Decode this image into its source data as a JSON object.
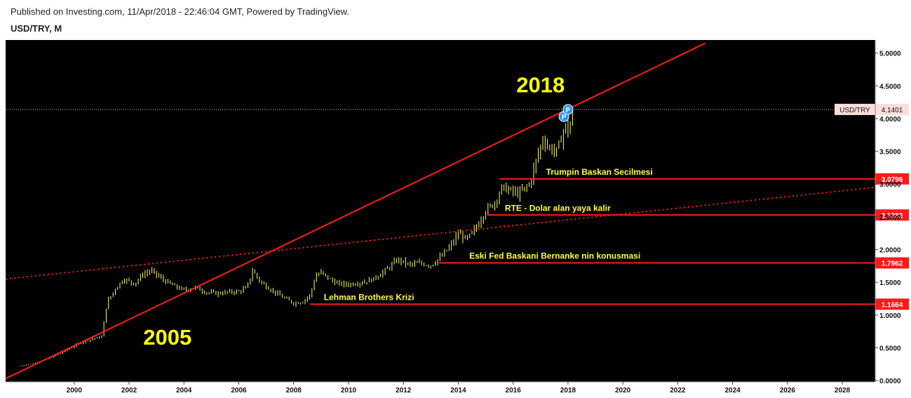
{
  "header": {
    "published": "Published on Investing.com, 11/Apr/2018 - 22:46:04 GMT, Powered by TradingView.",
    "symbol": "USD/TRY, M"
  },
  "colors": {
    "background": "#000000",
    "candles": "#ffff66",
    "trendline": "#ff1a1a",
    "level_line": "#ff1a1a",
    "label_text": "#ffff33",
    "price_tag_bg": "#ffdddd"
  },
  "chart_data": {
    "type": "line",
    "title": "USD/TRY, M",
    "xlim": [
      1997.5,
      2029.2
    ],
    "ylim": [
      -0.02,
      5.2
    ],
    "x_ticks": [
      "2000",
      "2002",
      "2004",
      "2006",
      "2008",
      "2010",
      "2012",
      "2014",
      "2016",
      "2018",
      "2020",
      "2022",
      "2024",
      "2026",
      "2028"
    ],
    "y_ticks": [
      "0.0000",
      "0.5000",
      "1.0000",
      "1.5000",
      "2.0000",
      "2.5000",
      "3.0000",
      "3.5000",
      "4.0000",
      "4.5000",
      "5.0000"
    ],
    "series": [
      {
        "name": "USD/TRY",
        "x": [
          1998.0,
          1998.5,
          1999.0,
          1999.5,
          2000.0,
          2000.5,
          2001.0,
          2001.2,
          2001.5,
          2001.8,
          2002.2,
          2002.5,
          2002.8,
          2003.2,
          2003.6,
          2004.0,
          2004.4,
          2004.8,
          2005.2,
          2005.6,
          2006.0,
          2006.3,
          2006.5,
          2006.8,
          2007.2,
          2007.6,
          2008.0,
          2008.3,
          2008.6,
          2008.8,
          2009.0,
          2009.3,
          2009.6,
          2010.0,
          2010.5,
          2010.9,
          2011.4,
          2011.8,
          2012.2,
          2012.6,
          2013.0,
          2013.4,
          2013.8,
          2014.0,
          2014.3,
          2014.6,
          2015.0,
          2015.3,
          2015.6,
          2015.9,
          2016.2,
          2016.6,
          2016.9,
          2017.1,
          2017.3,
          2017.6,
          2017.9,
          2018.0,
          2018.2
        ],
        "y": [
          0.22,
          0.26,
          0.33,
          0.42,
          0.53,
          0.62,
          0.67,
          1.2,
          1.4,
          1.55,
          1.48,
          1.62,
          1.68,
          1.55,
          1.45,
          1.38,
          1.42,
          1.35,
          1.33,
          1.35,
          1.36,
          1.42,
          1.68,
          1.5,
          1.38,
          1.27,
          1.18,
          1.2,
          1.3,
          1.6,
          1.65,
          1.55,
          1.48,
          1.47,
          1.5,
          1.55,
          1.7,
          1.85,
          1.77,
          1.79,
          1.76,
          1.9,
          2.1,
          2.25,
          2.15,
          2.3,
          2.6,
          2.7,
          2.95,
          2.9,
          2.85,
          3.0,
          3.45,
          3.7,
          3.55,
          3.5,
          3.9,
          3.8,
          4.1
        ]
      }
    ],
    "current": {
      "label": "USD/TRY",
      "value": "4.1401",
      "price": 4.1401
    },
    "levels": [
      {
        "price": 3.0796,
        "label": "3.0796",
        "x_start": 2015.5,
        "annotation": "Trumpin Baskan Secilmesi",
        "ann_x": 2017.2
      },
      {
        "price": 2.5282,
        "label": "2.5282",
        "x_start": 2015.1,
        "annotation": "RTE - Dolar alan yaya kalir",
        "ann_x": 2015.7
      },
      {
        "price": 1.7962,
        "label": "1.7962",
        "x_start": 2013.3,
        "annotation": "Eski Fed Baskani Bernanke nin konusmasi",
        "ann_x": 2014.4
      },
      {
        "price": 1.1664,
        "label": "1.1664",
        "x_start": 2008.6,
        "annotation": "Lehman Brothers Krizi",
        "ann_x": 2009.1
      }
    ],
    "trendlines": [
      {
        "style": "solid",
        "x1": 1997.5,
        "y1": 0.03,
        "x2": 2023.0,
        "y2": 5.15
      },
      {
        "style": "dotted",
        "x1": 1997.5,
        "y1": 1.55,
        "x2": 2029.2,
        "y2": 2.95
      }
    ],
    "big_labels": [
      {
        "text": "2005",
        "x": 2003.4,
        "y": 0.55
      },
      {
        "text": "2018",
        "x": 2017.0,
        "y": 4.4
      }
    ],
    "markers": [
      {
        "text": "P",
        "x": 2017.85,
        "y": 4.03
      },
      {
        "text": "P",
        "x": 2018.0,
        "y": 4.14
      }
    ]
  }
}
